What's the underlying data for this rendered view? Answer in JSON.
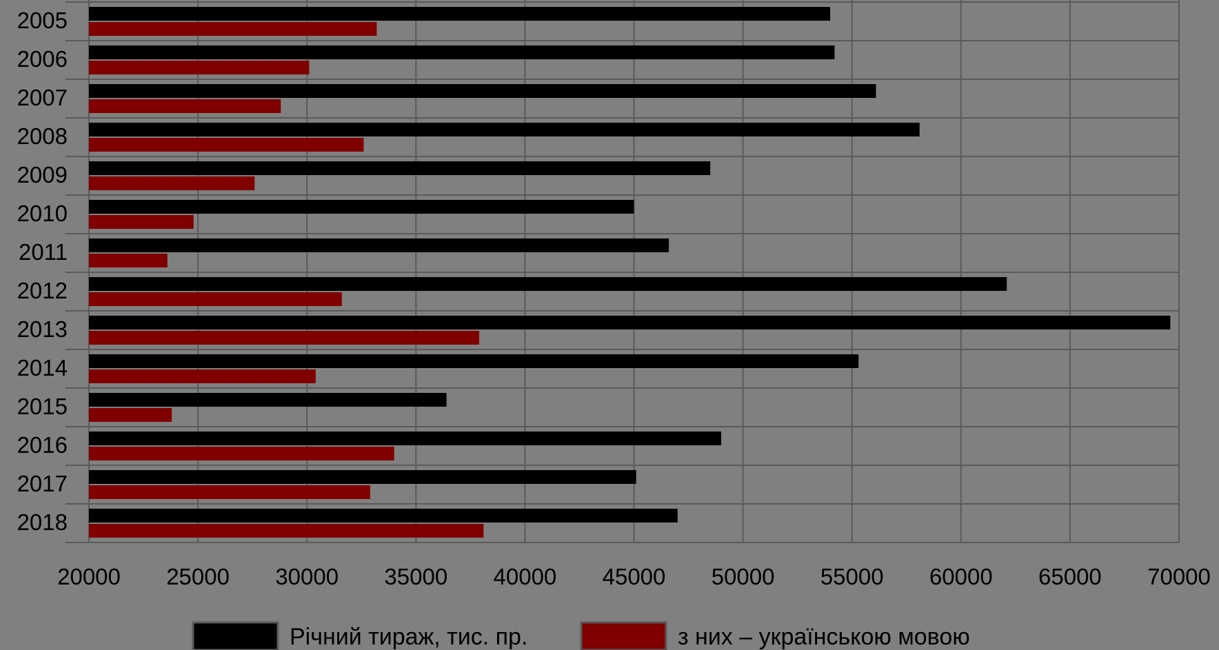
{
  "chart_data": {
    "type": "bar",
    "orientation": "horizontal",
    "categories": [
      "2005",
      "2006",
      "2007",
      "2008",
      "2009",
      "2010",
      "2011",
      "2012",
      "2013",
      "2014",
      "2015",
      "2016",
      "2017",
      "2018"
    ],
    "series": [
      {
        "name": "Річний тираж,  тис. пр.",
        "color": "#000000",
        "values": [
          54000,
          54200,
          56100,
          58100,
          48500,
          45000,
          46600,
          62100,
          69600,
          55300,
          36400,
          49000,
          45100,
          47000
        ]
      },
      {
        "name": "з них – українською мовою",
        "color": "#800000",
        "values": [
          33200,
          30100,
          28800,
          32600,
          27600,
          24800,
          23600,
          31600,
          37900,
          30400,
          23800,
          34000,
          32900,
          38100
        ]
      }
    ],
    "xlim": [
      20000,
      70000
    ],
    "xticks": [
      "20000",
      "25000",
      "30000",
      "35000",
      "40000",
      "45000",
      "50000",
      "55000",
      "60000",
      "65000",
      "70000"
    ],
    "grid": true,
    "legend_position": "bottom",
    "background": "#808080",
    "gridline_color": "#5a5a5a"
  }
}
